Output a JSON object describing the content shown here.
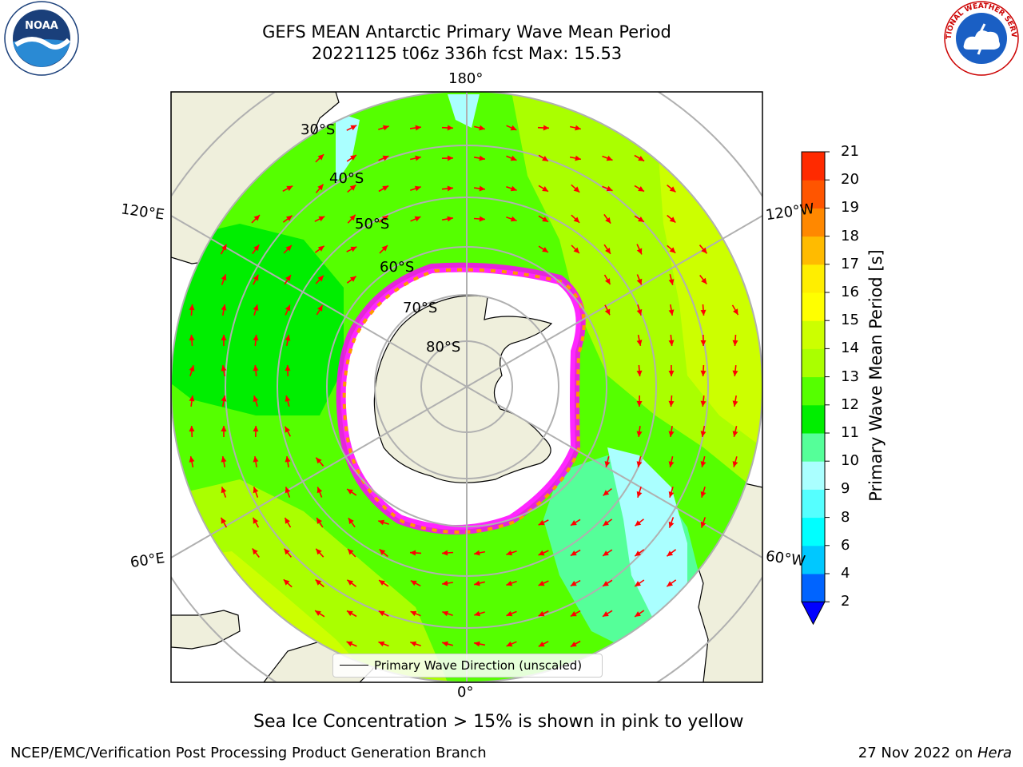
{
  "title_line1": "GEFS MEAN Antarctic Primary Wave Mean Period",
  "title_line2": "20221125 t06z 336h fcst   Max: 15.53",
  "logos": {
    "left": "noaa-logo",
    "right": "nws-logo",
    "left_text": "NOAA",
    "right_text": "NATIONAL WEATHER SERVICE"
  },
  "map": {
    "projection": "south-polar-stereographic",
    "longitude_labels": {
      "top": "180°",
      "bottom": "0°",
      "upper_left": "120°E",
      "upper_right": "120°W",
      "lower_left": "60°E",
      "lower_right": "60°W"
    },
    "latitude_labels": [
      "30°S",
      "40°S",
      "50°S",
      "60°S",
      "70°S",
      "80°S"
    ],
    "legend_label": "Primary Wave Direction (unscaled)",
    "vector_color": "#ff0000",
    "land_color": "#efefdc",
    "ice_colors": [
      "#ff00ff",
      "#ff9900",
      "#ffff00"
    ]
  },
  "colorbar": {
    "label": "Primary Wave Mean Period [s]",
    "ticks": [
      "2",
      "4",
      "6",
      "8",
      "9",
      "10",
      "11",
      "12",
      "13",
      "14",
      "15",
      "16",
      "17",
      "18",
      "19",
      "20",
      "21"
    ],
    "colors": [
      "#0064ff",
      "#00c8ff",
      "#00ffff",
      "#55ffff",
      "#aaffff",
      "#55ff99",
      "#00ee00",
      "#55ff00",
      "#aaff00",
      "#ccff00",
      "#ffff00",
      "#ffee00",
      "#ffbb00",
      "#ff8800",
      "#ff5500",
      "#ff2a00"
    ],
    "under_color": "#0000ff"
  },
  "footer_note": "Sea Ice Concentration > 15% is shown in pink to yellow",
  "credit": "NCEP/EMC/Verification Post Processing Product Generation Branch",
  "date_prefix": "27 Nov 2022 on ",
  "date_host": "Hera"
}
